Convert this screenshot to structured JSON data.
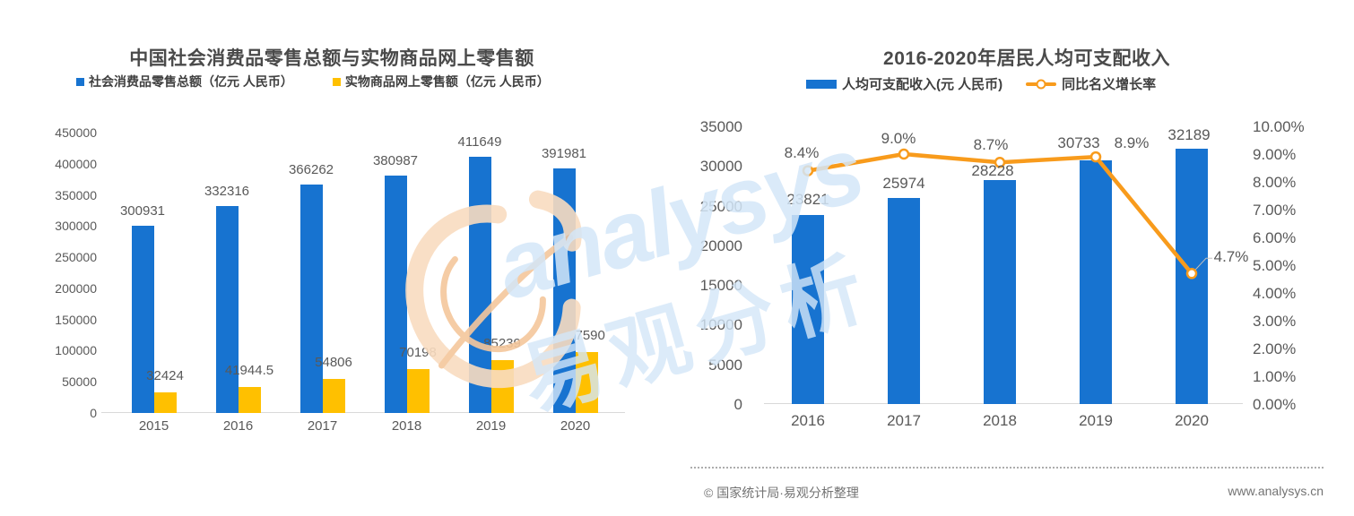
{
  "chart_data": [
    {
      "type": "bar",
      "title": "中国社会消费品零售总额与实物商品网上零售额",
      "categories": [
        "2015",
        "2016",
        "2017",
        "2018",
        "2019",
        "2020"
      ],
      "series": [
        {
          "name": "社会消费品零售总额（亿元 人民币）",
          "color": "#1773D0",
          "values": [
            300931,
            332316,
            366262,
            380987,
            411649,
            391981
          ],
          "labels": [
            "300931",
            "332316",
            "366262",
            "380987",
            "411649",
            "391981"
          ]
        },
        {
          "name": "实物商品网上零售额（亿元 人民币）",
          "color": "#FFC000",
          "values": [
            32424,
            41944.5,
            54806,
            70198,
            85239,
            97590
          ],
          "labels": [
            "32424",
            "41944.5",
            "54806",
            "70198",
            "85239",
            "97590"
          ]
        }
      ],
      "ylim": [
        0,
        450000
      ],
      "ytick_step": 50000,
      "grid": false,
      "legend_position": "top"
    },
    {
      "type": "bar+line",
      "title": "2016-2020年居民人均可支配收入",
      "categories": [
        "2016",
        "2017",
        "2018",
        "2019",
        "2020"
      ],
      "series": [
        {
          "type": "bar",
          "name": "人均可支配收入(元 人民币)",
          "color": "#1773D0",
          "axis": "left",
          "values": [
            23821,
            25974,
            28228,
            30733,
            32189
          ],
          "labels": [
            "23821",
            "25974",
            "28228",
            "30733",
            "32189"
          ]
        },
        {
          "type": "line",
          "name": "同比名义增长率",
          "color": "#F89B1C",
          "axis": "right",
          "values": [
            8.4,
            9.0,
            8.7,
            8.9,
            4.7
          ],
          "labels": [
            "8.4%",
            "9.0%",
            "8.7%",
            "8.9%",
            "4.7%"
          ]
        }
      ],
      "ylim_left": [
        0,
        35000
      ],
      "ytick_step_left": 5000,
      "ylim_right": [
        0,
        10
      ],
      "ytick_step_right": 1,
      "ytick_suffix_right": ".00%",
      "grid": false,
      "legend_position": "top"
    }
  ],
  "watermark": {
    "brand_en": "analysys",
    "brand_cn": "易观分析",
    "logo": "analysys-swoosh-icon",
    "text_color": "#D4E7F8",
    "logo_color_light": "#F9DCC0",
    "logo_color_accent": "#F5C79C"
  },
  "footer": {
    "source": "© 国家统计局·易观分析整理",
    "website": "www.analysys.cn"
  },
  "colors": {
    "bar_blue": "#1773D0",
    "bar_yellow": "#FFC000",
    "line_orange": "#F89B1C",
    "label_gray": "#595959",
    "axis_gray": "#D9D9D9"
  }
}
